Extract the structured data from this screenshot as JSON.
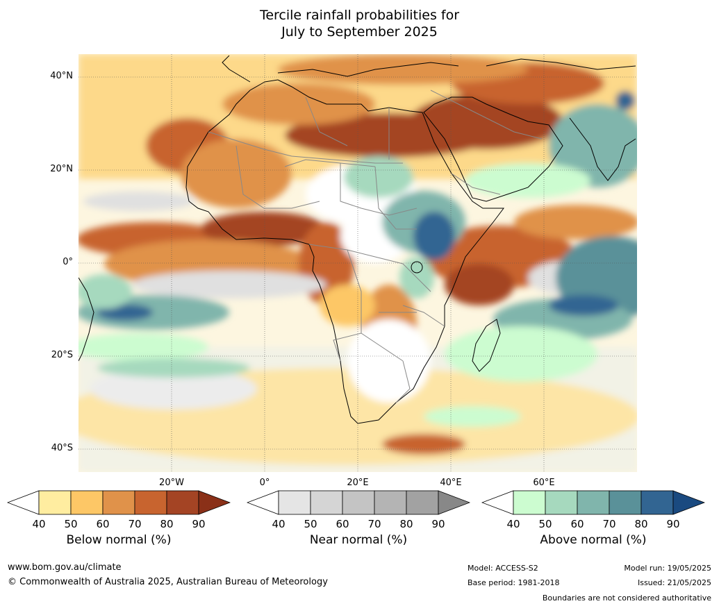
{
  "title_line1": "Tercile rainfall probabilities for",
  "title_line2": "July to September 2025",
  "lat_labels": [
    {
      "text": "40°N",
      "lat": 40
    },
    {
      "text": "20°N",
      "lat": 20
    },
    {
      "text": "0°",
      "lat": 0
    },
    {
      "text": "20°S",
      "lat": -20
    },
    {
      "text": "40°S",
      "lat": -40
    }
  ],
  "lon_labels": [
    {
      "text": "20°W",
      "lon": -20
    },
    {
      "text": "0°",
      "lon": 0
    },
    {
      "text": "20°E",
      "lon": 20
    },
    {
      "text": "40°E",
      "lon": 40
    },
    {
      "text": "60°E",
      "lon": 60
    }
  ],
  "map_extent": {
    "lon_min": -40,
    "lon_max": 80,
    "lat_min": -45,
    "lat_max": 45
  },
  "colorbars": [
    {
      "caption": "Below normal (%)",
      "ticks": [
        "40",
        "50",
        "60",
        "70",
        "80",
        "90"
      ],
      "colors": [
        "#ffeda0",
        "#fdc766",
        "#e0924a",
        "#c8642f",
        "#a44424"
      ],
      "over_color": "#8a3018"
    },
    {
      "caption": "Near normal (%)",
      "ticks": [
        "40",
        "50",
        "60",
        "70",
        "80",
        "90"
      ],
      "colors": [
        "#e5e5e5",
        "#d5d5d5",
        "#c4c4c4",
        "#b4b4b4",
        "#a2a2a2"
      ],
      "over_color": "#888888"
    },
    {
      "caption": "Above normal (%)",
      "ticks": [
        "40",
        "50",
        "60",
        "70",
        "80",
        "90"
      ],
      "colors": [
        "#ccfcd0",
        "#a6d9be",
        "#80b5ac",
        "#5a9199",
        "#326592"
      ],
      "over_color": "#1a4a80"
    }
  ],
  "footer": {
    "website": "www.bom.gov.au/climate",
    "copyright": "© Commonwealth of Australia 2025, Australian Bureau of Meteorology",
    "model": "Model: ACCESS-S2",
    "base_period": "Base period: 1981-2018",
    "model_run": "Model run: 19/05/2025",
    "issued": "Issued: 21/05/2025",
    "disclaimer": "Boundaries are not considered authoritative"
  }
}
